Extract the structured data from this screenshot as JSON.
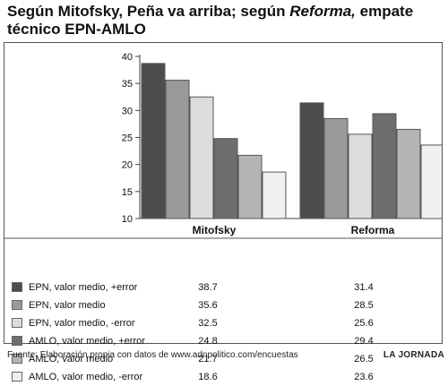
{
  "title": {
    "part1": "Según Mitofsky, Peña va arriba; según ",
    "italic": "Reforma,",
    "part2": " empate técnico EPN-AMLO"
  },
  "chart_data": {
    "type": "bar",
    "categories": [
      "Mitofsky",
      "Reforma"
    ],
    "series": [
      {
        "name": "EPN, valor medio, +error",
        "values": [
          38.7,
          31.4
        ],
        "color": "#4d4d4d"
      },
      {
        "name": "EPN, valor medio",
        "values": [
          35.6,
          28.5
        ],
        "color": "#9a9a9a"
      },
      {
        "name": "EPN, valor medio, -error",
        "values": [
          32.5,
          25.6
        ],
        "color": "#dcdcdc"
      },
      {
        "name": "AMLO, valor medio, +error",
        "values": [
          24.8,
          29.4
        ],
        "color": "#6e6e6e"
      },
      {
        "name": "AMLO, valor medio",
        "values": [
          21.7,
          26.5
        ],
        "color": "#b4b4b4"
      },
      {
        "name": "AMLO, valor medio, -error",
        "values": [
          18.6,
          23.6
        ],
        "color": "#f0f0f0"
      }
    ],
    "ylim": [
      10,
      40
    ],
    "yticks": [
      10,
      15,
      20,
      25,
      30,
      35,
      40
    ],
    "grid": false,
    "legend": "table-below"
  },
  "footer": {
    "source": "Fuente: Elaboración propia con datos de www.adnpolitico.com/encuestas",
    "brand": "LA JORNADA"
  }
}
